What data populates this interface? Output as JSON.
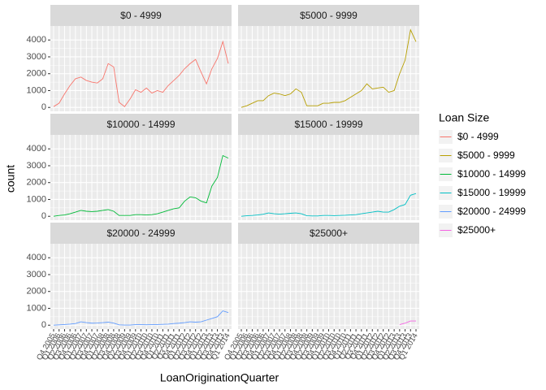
{
  "chart_data": {
    "type": "line",
    "xlabel": "LoanOriginationQuarter",
    "ylabel": "count",
    "legend_title": "Loan Size",
    "categories": [
      "Q4 2005",
      "Q1 2006",
      "Q2 2006",
      "Q3 2006",
      "Q4 2006",
      "Q1 2007",
      "Q2 2007",
      "Q3 2007",
      "Q4 2007",
      "Q1 2008",
      "Q2 2008",
      "Q3 2008",
      "Q4 2008",
      "Q2 2009",
      "Q3 2009",
      "Q4 2009",
      "Q1 2010",
      "Q2 2010",
      "Q3 2010",
      "Q4 2010",
      "Q1 2011",
      "Q2 2011",
      "Q3 2011",
      "Q4 2011",
      "Q1 2012",
      "Q2 2012",
      "Q3 2012",
      "Q4 2012",
      "Q1 2013",
      "Q2 2013",
      "Q3 2013",
      "Q4 2013",
      "Q1 2014"
    ],
    "series": [
      {
        "name": "$0 - 4999",
        "color": "#F8766D",
        "values": [
          50,
          250,
          800,
          1300,
          1700,
          1800,
          1600,
          1500,
          1450,
          1700,
          2600,
          2400,
          300,
          50,
          500,
          1050,
          900,
          1150,
          850,
          1000,
          900,
          1300,
          1600,
          1900,
          2300,
          2600,
          2850,
          2100,
          1400,
          2300,
          2900,
          3900,
          2600
        ]
      },
      {
        "name": "$5000 - 9999",
        "color": "#B79F00",
        "values": [
          0,
          100,
          250,
          400,
          400,
          700,
          850,
          800,
          700,
          800,
          1100,
          900,
          100,
          100,
          100,
          250,
          250,
          300,
          300,
          400,
          600,
          800,
          1000,
          1400,
          1100,
          1150,
          1200,
          900,
          1000,
          2000,
          2800,
          4600,
          3900
        ]
      },
      {
        "name": "$10000 - 14999",
        "color": "#00BA38",
        "values": [
          0,
          50,
          80,
          150,
          250,
          350,
          300,
          280,
          300,
          350,
          400,
          300,
          50,
          50,
          50,
          100,
          100,
          80,
          100,
          150,
          250,
          350,
          450,
          500,
          900,
          1150,
          1100,
          900,
          800,
          1800,
          2300,
          3600,
          3450
        ]
      },
      {
        "name": "$15000 - 19999",
        "color": "#00BFC4",
        "values": [
          0,
          30,
          50,
          80,
          120,
          200,
          150,
          130,
          150,
          180,
          200,
          150,
          30,
          20,
          20,
          50,
          50,
          40,
          50,
          60,
          80,
          100,
          150,
          200,
          250,
          300,
          250,
          250,
          400,
          600,
          700,
          1250,
          1350
        ]
      },
      {
        "name": "$20000 - 24999",
        "color": "#619CFF",
        "values": [
          0,
          20,
          40,
          60,
          100,
          200,
          150,
          120,
          130,
          150,
          180,
          120,
          20,
          10,
          10,
          30,
          30,
          25,
          30,
          40,
          50,
          60,
          100,
          120,
          150,
          200,
          180,
          200,
          300,
          400,
          500,
          850,
          750
        ]
      },
      {
        "name": "$25000+",
        "color": "#F564E3",
        "values": [
          null,
          null,
          null,
          null,
          null,
          null,
          null,
          null,
          null,
          null,
          null,
          null,
          null,
          null,
          null,
          null,
          null,
          null,
          null,
          null,
          null,
          null,
          null,
          null,
          null,
          null,
          null,
          null,
          null,
          30,
          120,
          250,
          250
        ]
      }
    ],
    "ylim": [
      -230,
      4830
    ],
    "yticks": [
      0,
      1000,
      2000,
      3000,
      4000
    ],
    "grid": true
  }
}
